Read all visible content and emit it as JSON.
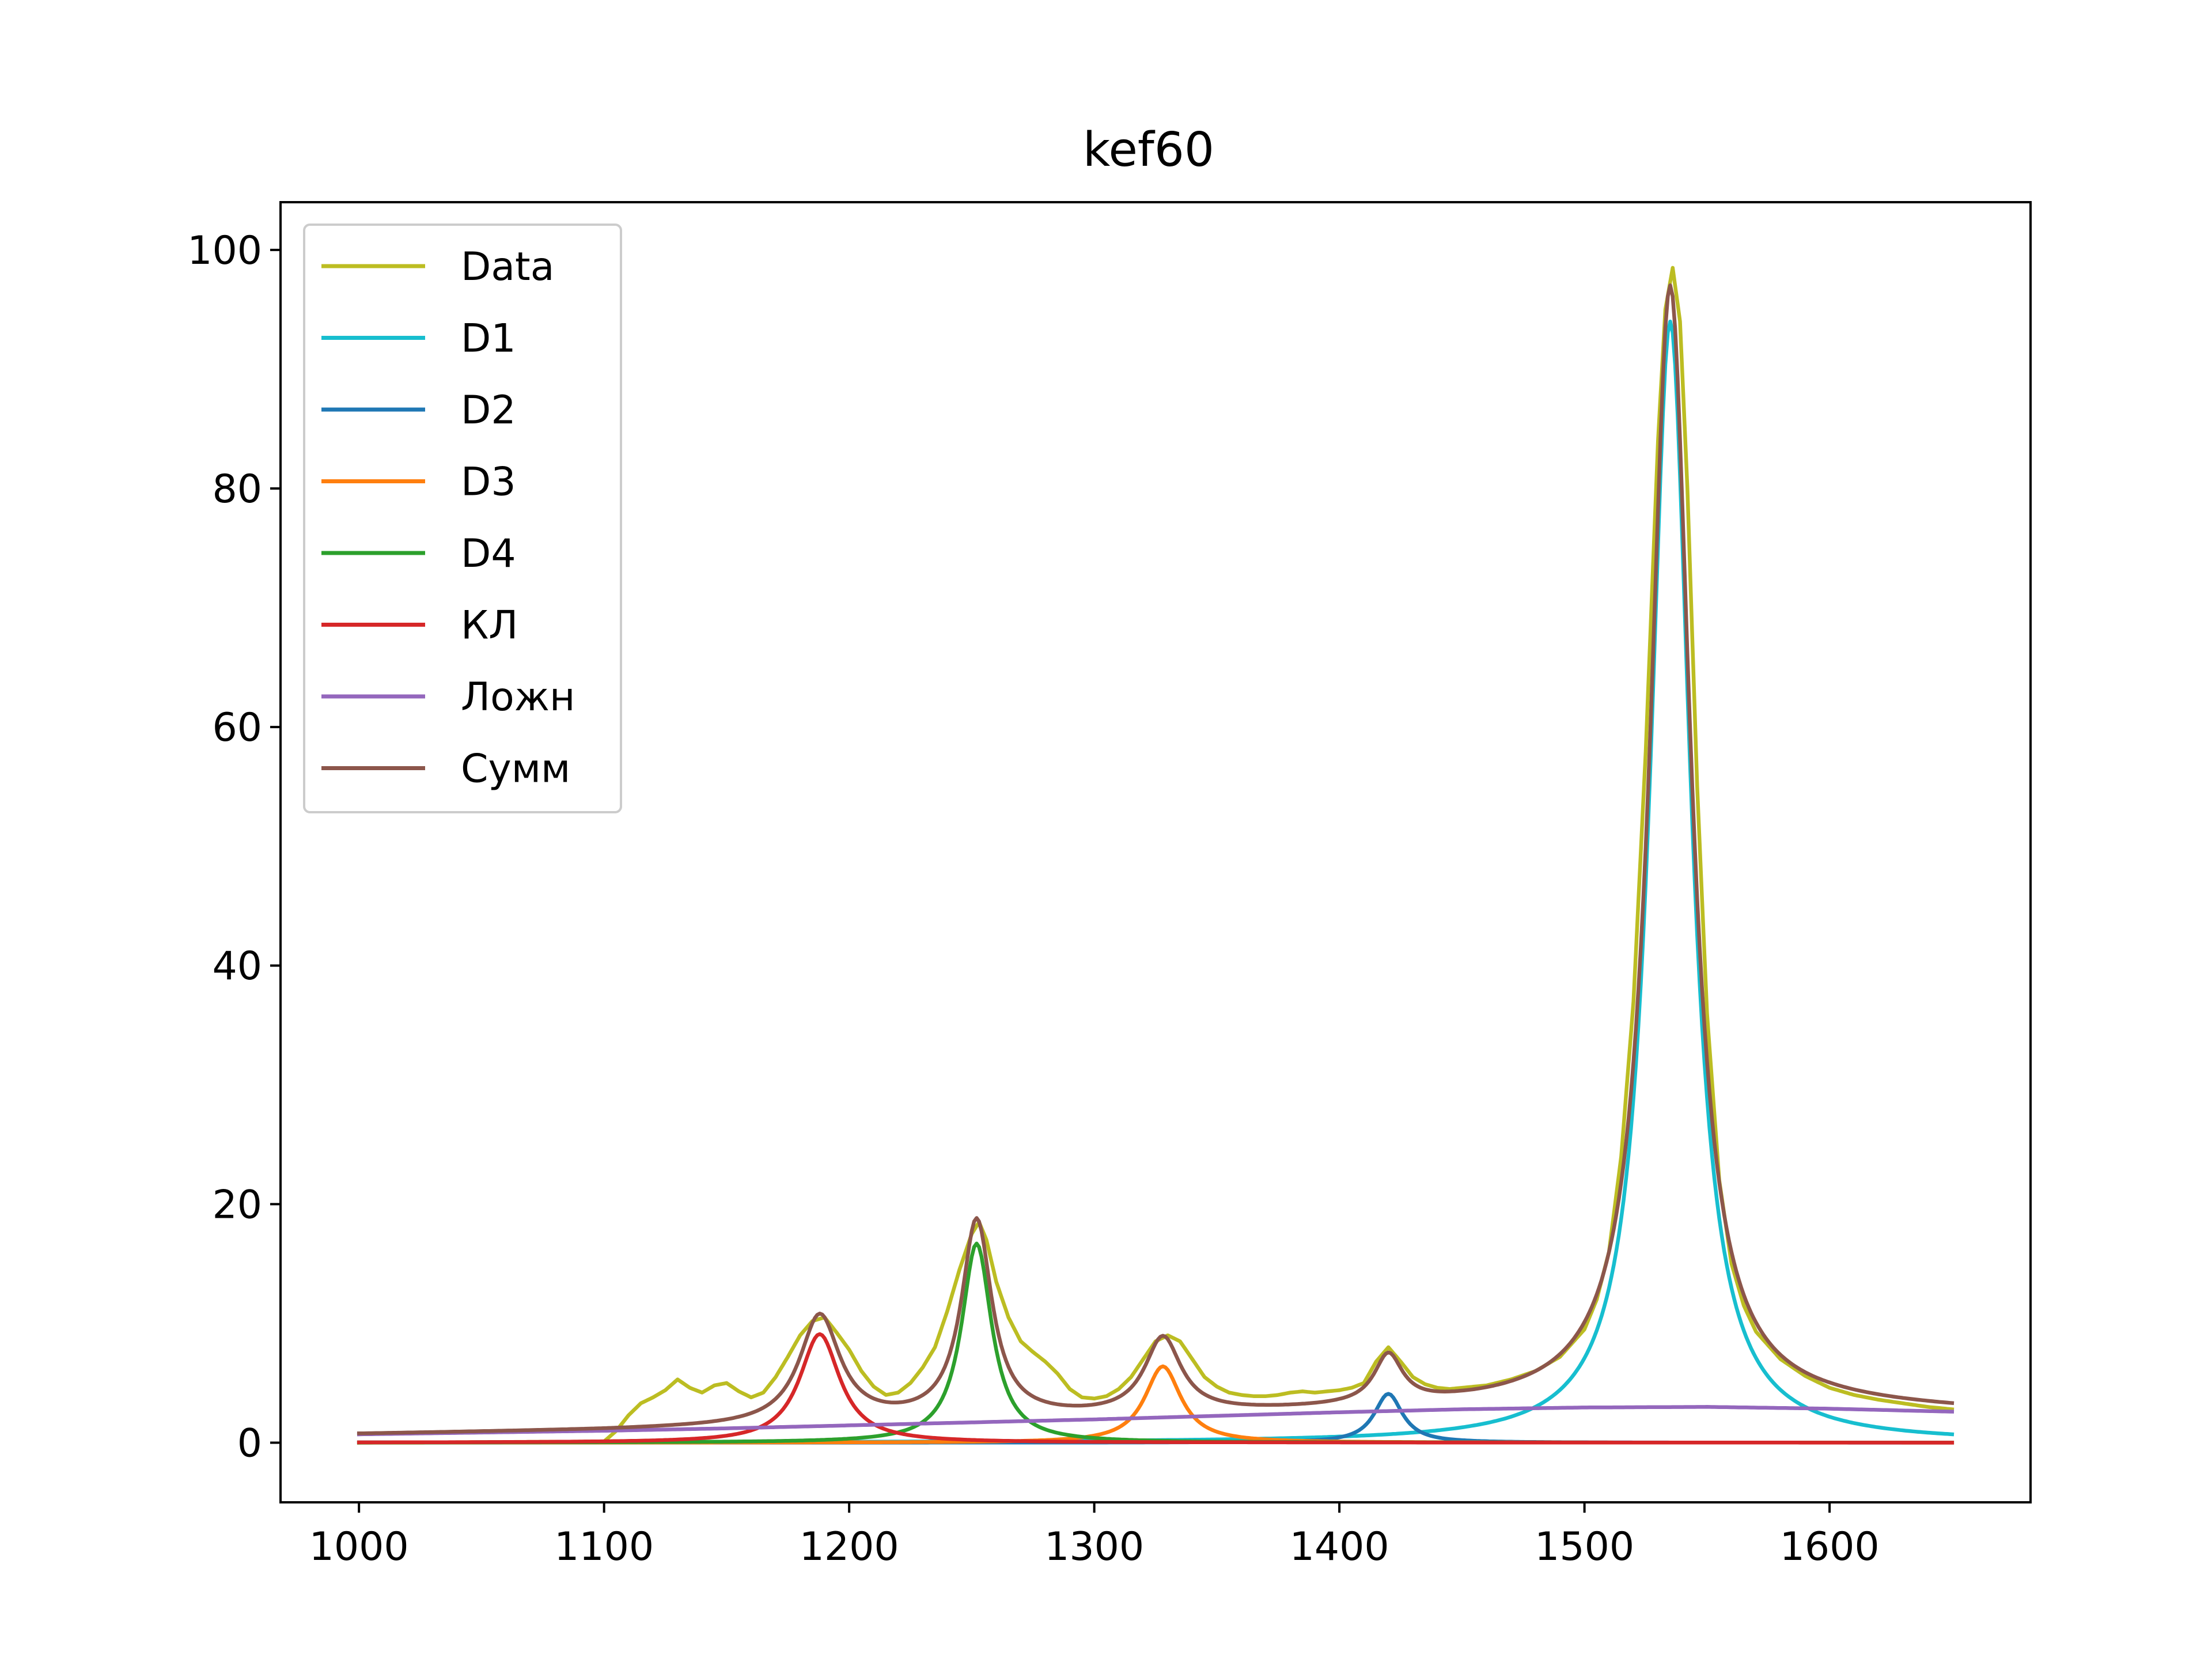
{
  "chart_data": {
    "type": "line",
    "title": "kef60",
    "xlabel": "",
    "ylabel": "",
    "xlim": [
      968,
      1682
    ],
    "ylim": [
      -5,
      104
    ],
    "xticks": [
      "1000",
      "1100",
      "1200",
      "1300",
      "1400",
      "1500",
      "1600"
    ],
    "yticks": [
      "0",
      "20",
      "40",
      "60",
      "80",
      "100"
    ],
    "grid": false,
    "legend_position": "upper-left",
    "series": [
      {
        "name": "Data",
        "color": "#bcbd22",
        "points": [
          [
            1000,
            0.0
          ],
          [
            1100,
            0.1
          ],
          [
            1105,
            1.0
          ],
          [
            1110,
            2.3
          ],
          [
            1115,
            3.3
          ],
          [
            1120,
            3.8
          ],
          [
            1125,
            4.4
          ],
          [
            1130,
            5.3
          ],
          [
            1135,
            4.6
          ],
          [
            1140,
            4.2
          ],
          [
            1145,
            4.8
          ],
          [
            1150,
            5.0
          ],
          [
            1155,
            4.3
          ],
          [
            1160,
            3.8
          ],
          [
            1165,
            4.2
          ],
          [
            1170,
            5.5
          ],
          [
            1175,
            7.2
          ],
          [
            1180,
            9.0
          ],
          [
            1185,
            10.2
          ],
          [
            1190,
            10.5
          ],
          [
            1195,
            9.2
          ],
          [
            1200,
            7.8
          ],
          [
            1205,
            6.0
          ],
          [
            1210,
            4.7
          ],
          [
            1215,
            4.0
          ],
          [
            1220,
            4.2
          ],
          [
            1225,
            5.0
          ],
          [
            1230,
            6.3
          ],
          [
            1235,
            8.0
          ],
          [
            1240,
            11.0
          ],
          [
            1245,
            14.5
          ],
          [
            1250,
            17.5
          ],
          [
            1253,
            18.5
          ],
          [
            1256,
            17.0
          ],
          [
            1260,
            13.5
          ],
          [
            1265,
            10.5
          ],
          [
            1270,
            8.5
          ],
          [
            1275,
            7.6
          ],
          [
            1280,
            6.8
          ],
          [
            1285,
            5.8
          ],
          [
            1290,
            4.5
          ],
          [
            1295,
            3.8
          ],
          [
            1300,
            3.7
          ],
          [
            1305,
            3.9
          ],
          [
            1310,
            4.5
          ],
          [
            1315,
            5.5
          ],
          [
            1320,
            7.0
          ],
          [
            1325,
            8.5
          ],
          [
            1330,
            9.0
          ],
          [
            1335,
            8.5
          ],
          [
            1340,
            7.0
          ],
          [
            1345,
            5.5
          ],
          [
            1350,
            4.7
          ],
          [
            1355,
            4.2
          ],
          [
            1360,
            4.0
          ],
          [
            1365,
            3.9
          ],
          [
            1370,
            3.9
          ],
          [
            1375,
            4.0
          ],
          [
            1380,
            4.2
          ],
          [
            1385,
            4.3
          ],
          [
            1390,
            4.2
          ],
          [
            1395,
            4.3
          ],
          [
            1400,
            4.4
          ],
          [
            1405,
            4.6
          ],
          [
            1410,
            5.0
          ],
          [
            1415,
            6.8
          ],
          [
            1420,
            8.0
          ],
          [
            1425,
            6.8
          ],
          [
            1430,
            5.5
          ],
          [
            1435,
            4.9
          ],
          [
            1440,
            4.6
          ],
          [
            1445,
            4.5
          ],
          [
            1450,
            4.6
          ],
          [
            1460,
            4.8
          ],
          [
            1470,
            5.3
          ],
          [
            1480,
            6.0
          ],
          [
            1490,
            7.2
          ],
          [
            1500,
            9.5
          ],
          [
            1505,
            12.0
          ],
          [
            1510,
            16.0
          ],
          [
            1515,
            24.0
          ],
          [
            1520,
            37.0
          ],
          [
            1525,
            58.0
          ],
          [
            1530,
            84.0
          ],
          [
            1533,
            95.0
          ],
          [
            1536,
            98.5
          ],
          [
            1539,
            94.0
          ],
          [
            1542,
            80.0
          ],
          [
            1546,
            55.0
          ],
          [
            1550,
            36.0
          ],
          [
            1555,
            22.0
          ],
          [
            1560,
            15.0
          ],
          [
            1565,
            11.5
          ],
          [
            1570,
            9.3
          ],
          [
            1580,
            7.0
          ],
          [
            1590,
            5.6
          ],
          [
            1600,
            4.6
          ],
          [
            1610,
            4.0
          ],
          [
            1620,
            3.6
          ],
          [
            1630,
            3.3
          ],
          [
            1640,
            3.0
          ],
          [
            1650,
            2.8
          ]
        ]
      },
      {
        "name": "D1",
        "color": "#17becf",
        "peak": {
          "center": 1535,
          "height": 94,
          "hwhm": 10
        }
      },
      {
        "name": "D2",
        "color": "#1f77b4",
        "peak": {
          "center": 1420,
          "height": 4.1,
          "hwhm": 7
        }
      },
      {
        "name": "D3",
        "color": "#ff7f0e",
        "peak": {
          "center": 1328,
          "height": 6.4,
          "hwhm": 9
        }
      },
      {
        "name": "D4",
        "color": "#2ca02c",
        "peak": {
          "center": 1252,
          "height": 16.7,
          "hwhm": 7.5
        }
      },
      {
        "name": "КЛ",
        "color": "#d62728",
        "peak": {
          "center": 1188,
          "height": 9.1,
          "hwhm": 10
        }
      },
      {
        "name": "Ложн",
        "color": "#9467bd",
        "points": [
          [
            1000,
            0.7
          ],
          [
            1050,
            0.85
          ],
          [
            1100,
            1.0
          ],
          [
            1150,
            1.2
          ],
          [
            1200,
            1.45
          ],
          [
            1250,
            1.7
          ],
          [
            1300,
            1.95
          ],
          [
            1350,
            2.25
          ],
          [
            1400,
            2.55
          ],
          [
            1450,
            2.8
          ],
          [
            1500,
            2.95
          ],
          [
            1550,
            3.0
          ],
          [
            1600,
            2.85
          ],
          [
            1650,
            2.6
          ]
        ]
      },
      {
        "name": "Сумм",
        "color": "#8c564b",
        "sum_of": [
          "D1",
          "D2",
          "D3",
          "D4",
          "КЛ",
          "Ложн"
        ]
      }
    ]
  }
}
